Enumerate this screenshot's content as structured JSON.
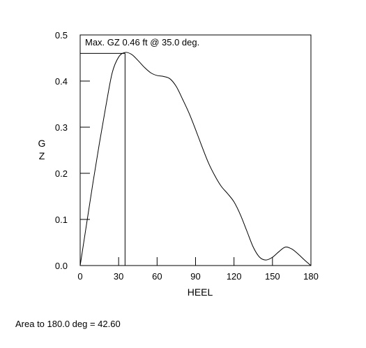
{
  "chart_data": {
    "type": "line",
    "xlabel": "HEEL",
    "ylabel": "GZ",
    "xlim": [
      0,
      180
    ],
    "ylim": [
      0,
      0.5
    ],
    "x_ticks": [
      "0",
      "30",
      "60",
      "90",
      "120",
      "150",
      "180"
    ],
    "y_ticks": [
      "0.0",
      "0.1",
      "0.2",
      "0.3",
      "0.4",
      "0.5"
    ],
    "grid": false,
    "annotation": "Max. GZ 0.46 ft @ 35.0 deg.",
    "max_point": {
      "x": 35.0,
      "y": 0.46
    },
    "series": [
      {
        "x": [
          0,
          5,
          10,
          15,
          20,
          25,
          30,
          35,
          40,
          45,
          50,
          55,
          60,
          65,
          70,
          75,
          80,
          85,
          90,
          95,
          100,
          105,
          110,
          115,
          120,
          125,
          130,
          135,
          140,
          145,
          150,
          155,
          160,
          165,
          170,
          175,
          180
        ],
        "y": [
          0.0,
          0.09,
          0.18,
          0.265,
          0.345,
          0.418,
          0.452,
          0.462,
          0.458,
          0.445,
          0.43,
          0.418,
          0.412,
          0.41,
          0.405,
          0.388,
          0.36,
          0.33,
          0.295,
          0.258,
          0.223,
          0.195,
          0.172,
          0.156,
          0.138,
          0.11,
          0.075,
          0.04,
          0.018,
          0.012,
          0.018,
          0.03,
          0.04,
          0.036,
          0.025,
          0.012,
          0.0
        ]
      }
    ]
  },
  "footer": {
    "area_text": "Area to 180.0 deg = 42.60"
  }
}
